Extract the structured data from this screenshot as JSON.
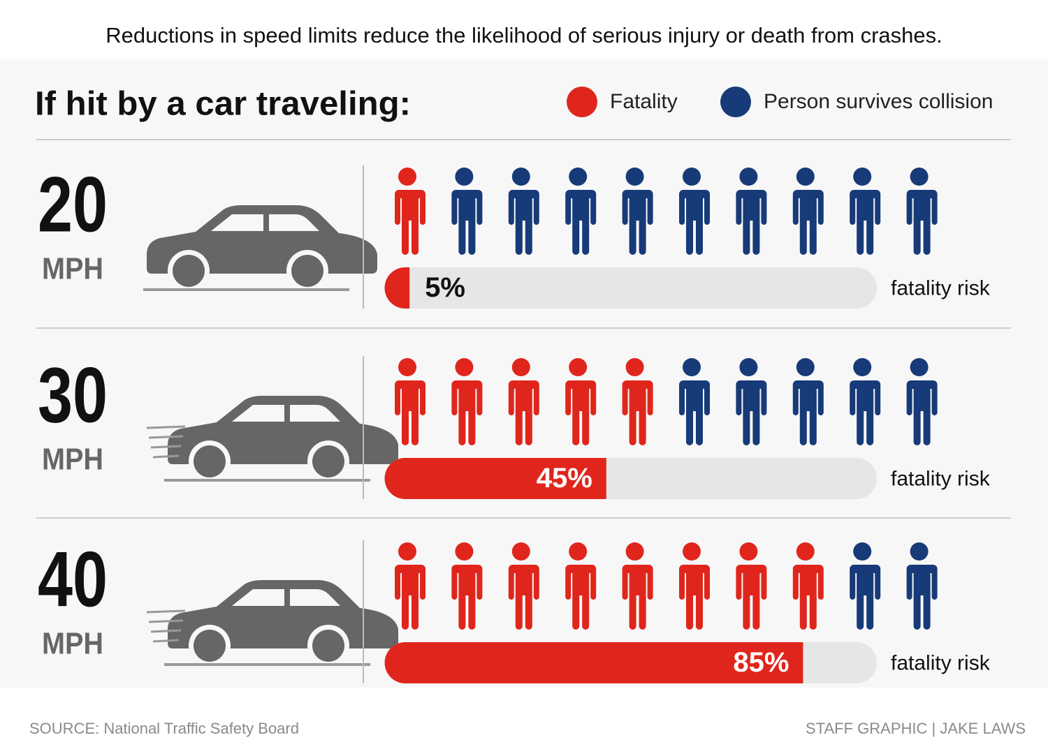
{
  "chart_data": {
    "type": "pictograph",
    "title": "Reductions in speed limits reduce the likelihood of serious injury or death from crashes.",
    "subtitle": "If hit by a car traveling:",
    "categories": [
      "20",
      "30",
      "40"
    ],
    "unit": "MPH",
    "series": [
      {
        "name": "Fatality",
        "color": "#e0261c",
        "values": [
          1,
          5,
          8
        ]
      },
      {
        "name": "Person survives collision",
        "color": "#173a78",
        "values": [
          9,
          5,
          2
        ]
      }
    ],
    "bar": {
      "values": [
        5,
        45,
        85
      ],
      "value_labels": [
        "5%",
        "45%",
        "85%"
      ],
      "xlim": [
        0,
        100
      ],
      "color": "#e0261c",
      "track_color": "#e6e6e6"
    },
    "bar_label": "fatality risk",
    "source": "SOURCE: National Traffic Safety Board",
    "credit": "STAFF GRAPHIC | JAKE LAWS"
  }
}
